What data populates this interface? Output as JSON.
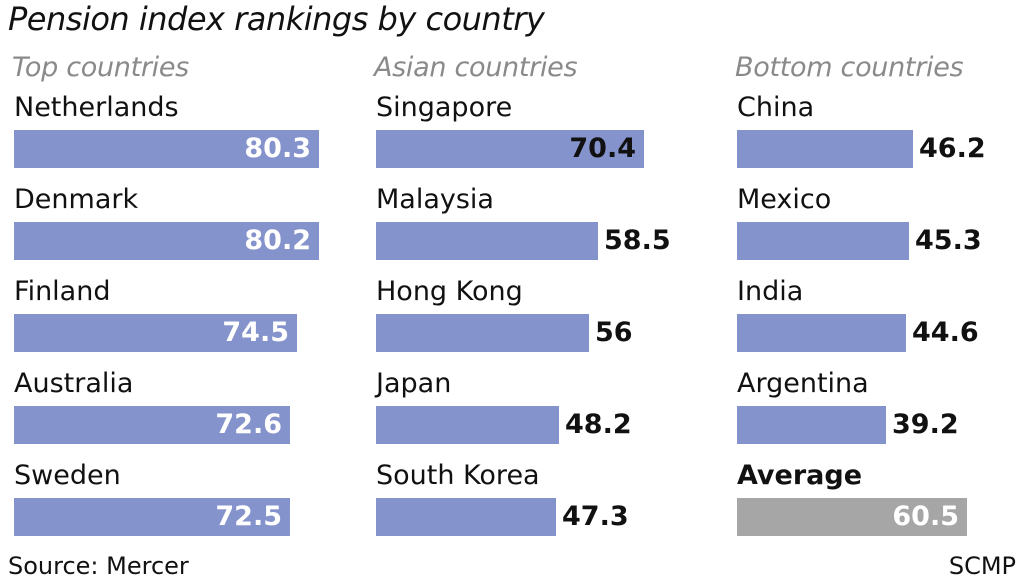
{
  "title": "Pension index rankings by country",
  "footer": {
    "source": "Source: Mercer",
    "credit": "SCMP"
  },
  "colors": {
    "bar": "#8593cc",
    "average_bar": "#a6a6a6",
    "panel_title": "#8a8a8a"
  },
  "chart_data": [
    {
      "type": "bar",
      "orientation": "horizontal",
      "title": "Top countries",
      "categories": [
        "Netherlands",
        "Denmark",
        "Finland",
        "Australia",
        "Sweden"
      ],
      "values": [
        80.3,
        80.2,
        74.5,
        72.6,
        72.5
      ],
      "value_labels": [
        "80.3",
        "80.2",
        "74.5",
        "72.6",
        "72.5"
      ],
      "xlim": [
        0,
        100
      ]
    },
    {
      "type": "bar",
      "orientation": "horizontal",
      "title": "Asian countries",
      "categories": [
        "Singapore",
        "Malaysia",
        "Hong Kong",
        "Japan",
        "South Korea"
      ],
      "values": [
        70.4,
        58.5,
        56,
        48.2,
        47.3
      ],
      "value_labels": [
        "70.4",
        "58.5",
        "56",
        "48.2",
        "47.3"
      ],
      "xlim": [
        0,
        100
      ]
    },
    {
      "type": "bar",
      "orientation": "horizontal",
      "title": "Bottom countries",
      "categories": [
        "China",
        "Mexico",
        "India",
        "Argentina",
        "Average"
      ],
      "values": [
        46.2,
        45.3,
        44.6,
        39.2,
        60.5
      ],
      "value_labels": [
        "46.2",
        "45.3",
        "44.6",
        "39.2",
        "60.5"
      ],
      "highlight": [
        "Average"
      ],
      "xlim": [
        0,
        100
      ]
    }
  ]
}
